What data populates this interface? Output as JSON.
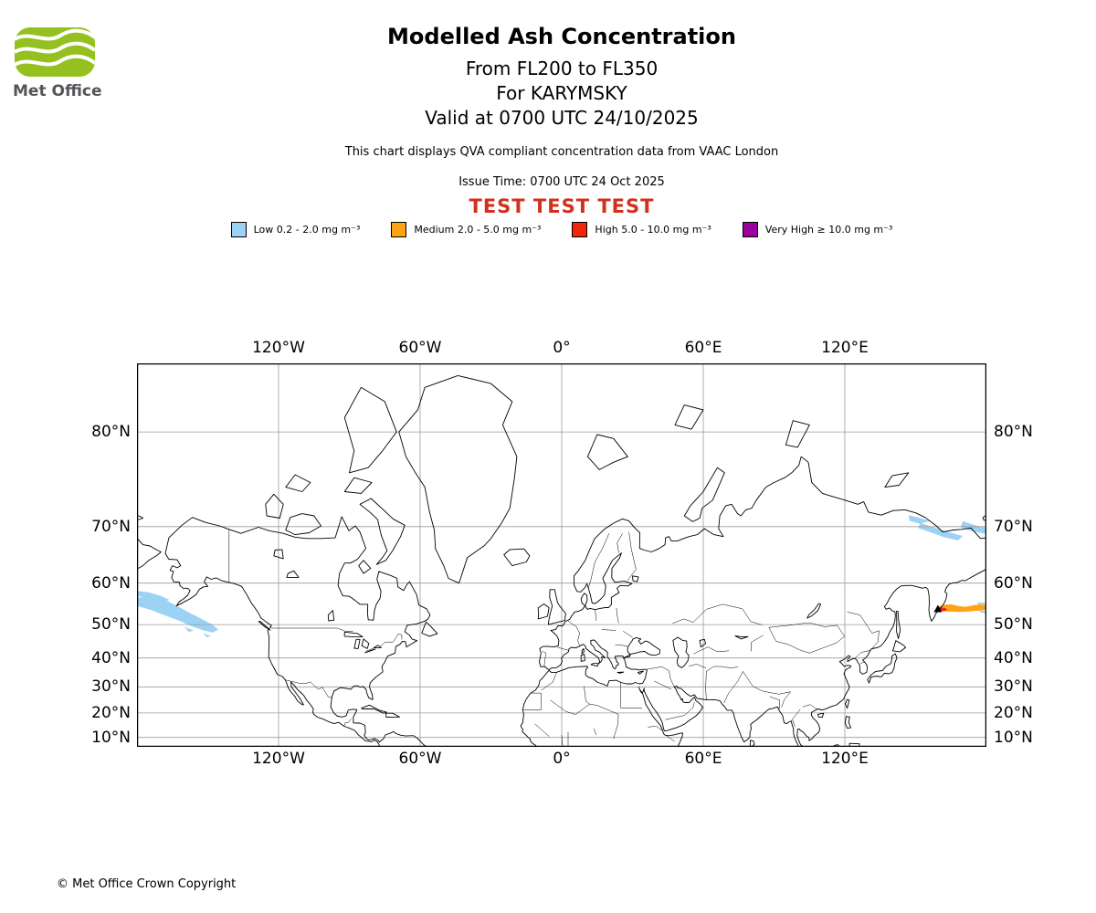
{
  "logo": {
    "text": "Met Office"
  },
  "header": {
    "title": "Modelled Ash Concentration",
    "subtitle1": "From FL200 to FL350",
    "subtitle2": "For KARYMSKY",
    "subtitle3": "Valid at 0700 UTC 24/10/2025",
    "note": "This chart displays QVA compliant concentration data from VAAC London",
    "issue_time": "Issue Time: 0700 UTC 24 Oct 2025",
    "watermark": "TEST TEST TEST",
    "watermark_color": "#d2301c"
  },
  "legend": {
    "items": [
      {
        "label": "Low 0.2 - 2.0 mg m⁻³",
        "color": "#9CD2F4",
        "level": "low"
      },
      {
        "label": "Medium 2.0 - 5.0 mg m⁻³",
        "color": "#FFA216",
        "level": "medium"
      },
      {
        "label": "High 5.0 - 10.0 mg m⁻³",
        "color": "#F3240C",
        "level": "high"
      },
      {
        "label": "Very High ≥ 10.0 mg m⁻³",
        "color": "#99009E",
        "level": "very_high"
      }
    ]
  },
  "map": {
    "projection": "mercator",
    "lon_range": [
      -180,
      180
    ],
    "lat_range": [
      5.7,
      84
    ],
    "lon_ticks": [
      {
        "value": -120,
        "label": "120°W"
      },
      {
        "value": -60,
        "label": "60°W"
      },
      {
        "value": 0,
        "label": "0°"
      },
      {
        "value": 60,
        "label": "60°E"
      },
      {
        "value": 120,
        "label": "120°E"
      }
    ],
    "lat_ticks": [
      {
        "value": 80,
        "label": "80°N"
      },
      {
        "value": 70,
        "label": "70°N"
      },
      {
        "value": 60,
        "label": "60°N"
      },
      {
        "value": 50,
        "label": "50°N"
      },
      {
        "value": 40,
        "label": "40°N"
      },
      {
        "value": 30,
        "label": "30°N"
      },
      {
        "value": 20,
        "label": "20°N"
      },
      {
        "value": 10,
        "label": "10°N"
      }
    ],
    "volcano": {
      "name": "KARYMSKY",
      "lon": 159.45,
      "lat": 54.05
    },
    "plumes": {
      "low": [
        [
          [
            -180,
            56.8
          ],
          [
            -174,
            57
          ],
          [
            -168,
            56.2
          ],
          [
            -163,
            54.8
          ],
          [
            -158,
            53.2
          ],
          [
            -153,
            51.6
          ],
          [
            -148,
            50
          ],
          [
            -145.5,
            48.6
          ],
          [
            -148,
            47.8
          ],
          [
            -152,
            48.4
          ],
          [
            -157,
            49.6
          ],
          [
            -162,
            51
          ],
          [
            -168,
            52.4
          ],
          [
            -174,
            53.8
          ],
          [
            -180,
            54.8
          ]
        ],
        [
          [
            -180,
            58.3
          ],
          [
            -175,
            58
          ],
          [
            -170,
            57.2
          ],
          [
            -166,
            56.2
          ],
          [
            -170,
            55.8
          ],
          [
            -175,
            56.6
          ],
          [
            -180,
            57.2
          ]
        ],
        [
          [
            -160,
            49.4
          ],
          [
            -156,
            48.4
          ],
          [
            -158,
            47.9
          ]
        ],
        [
          [
            -152,
            47.5
          ],
          [
            -148.5,
            46.8
          ],
          [
            -150.5,
            46.4
          ]
        ],
        [
          [
            152,
            70.5
          ],
          [
            157,
            70
          ],
          [
            162,
            69.4
          ],
          [
            166,
            69
          ],
          [
            170,
            68.6
          ],
          [
            168,
            67.9
          ],
          [
            162,
            68.4
          ],
          [
            156,
            69.2
          ],
          [
            151,
            69.8
          ]
        ],
        [
          [
            170,
            70.8
          ],
          [
            175,
            70.2
          ],
          [
            180,
            69.8
          ],
          [
            180,
            68.9
          ],
          [
            174,
            69.3
          ],
          [
            169,
            69.9
          ]
        ],
        [
          [
            147,
            71.6
          ],
          [
            152,
            71.2
          ],
          [
            156,
            70.8
          ],
          [
            152,
            70.4
          ],
          [
            147.5,
            70.8
          ]
        ],
        [
          [
            176,
            55.7
          ],
          [
            180,
            55.5
          ],
          [
            180,
            55.1
          ],
          [
            176.5,
            55.3
          ]
        ],
        [
          [
            177,
            53.7
          ],
          [
            180,
            53.5
          ],
          [
            180,
            52.9
          ],
          [
            177.5,
            53.2
          ]
        ]
      ],
      "medium": [
        [
          [
            159.3,
            54.6
          ],
          [
            162,
            55.1
          ],
          [
            165,
            55.2
          ],
          [
            168,
            54.8
          ],
          [
            171,
            54.6
          ],
          [
            174,
            54.9
          ],
          [
            177,
            55.2
          ],
          [
            180,
            55
          ],
          [
            180,
            53.8
          ],
          [
            176,
            53.6
          ],
          [
            172,
            53.4
          ],
          [
            168,
            53.3
          ],
          [
            164,
            53.4
          ],
          [
            161,
            53.5
          ],
          [
            159.5,
            53.8
          ]
        ]
      ],
      "high": [
        [
          [
            158.9,
            54.2
          ],
          [
            160.5,
            54.4
          ],
          [
            162.5,
            54.3
          ],
          [
            163.5,
            53.9
          ],
          [
            162,
            53.5
          ],
          [
            160,
            53.5
          ],
          [
            159.2,
            53.7
          ]
        ]
      ],
      "very_high": []
    }
  },
  "footer": {
    "copyright": "© Met Office Crown Copyright"
  }
}
